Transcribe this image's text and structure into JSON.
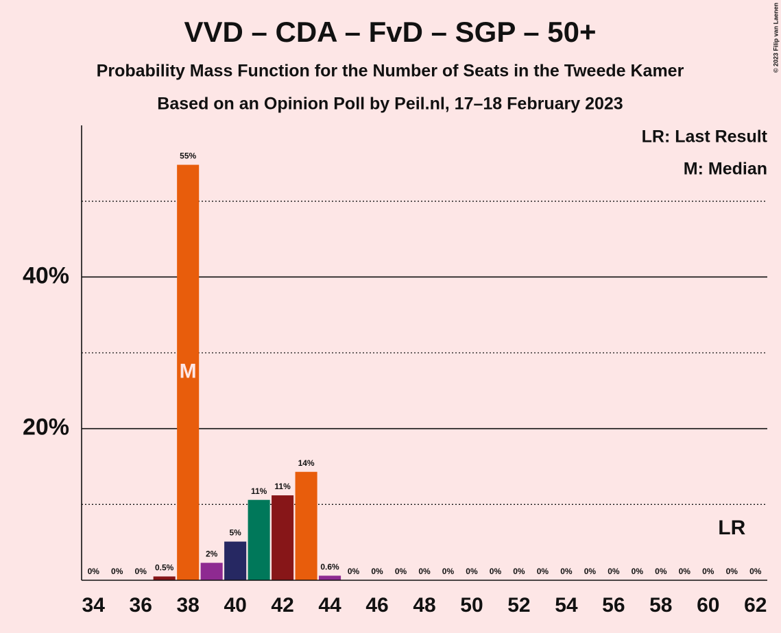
{
  "chart_data": {
    "type": "bar",
    "title": "VVD – CDA – FvD – SGP – 50+",
    "subtitle": "Probability Mass Function for the Number of Seats in the Tweede Kamer",
    "subtitle2": "Based on an Opinion Poll by Peil.nl, 17–18 February 2023",
    "copyright": "© 2023 Filip van Laenen",
    "legend": [
      "LR: Last Result",
      "M: Median"
    ],
    "legend_position": "upper right",
    "x": [
      34,
      35,
      36,
      37,
      38,
      39,
      40,
      41,
      42,
      43,
      44,
      45,
      46,
      47,
      48,
      49,
      50,
      51,
      52,
      53,
      54,
      55,
      56,
      57,
      58,
      59,
      60,
      61,
      62
    ],
    "values": [
      0,
      0,
      0,
      0.5,
      54.8,
      2.3,
      5.1,
      10.6,
      11.2,
      14.3,
      0.6,
      0,
      0,
      0,
      0,
      0,
      0,
      0,
      0,
      0,
      0,
      0,
      0,
      0,
      0,
      0,
      0,
      0,
      0
    ],
    "value_labels": [
      "0%",
      "0%",
      "0%",
      "0.5%",
      "55%",
      "2%",
      "5%",
      "11%",
      "11%",
      "14%",
      "0.6%",
      "0%",
      "0%",
      "0%",
      "0%",
      "0%",
      "0%",
      "0%",
      "0%",
      "0%",
      "0%",
      "0%",
      "0%",
      "0%",
      "0%",
      "0%",
      "0%",
      "0%",
      "0%"
    ],
    "colors": [
      "#871618",
      "#871618",
      "#871618",
      "#871618",
      "#e85d0c",
      "#8e2a91",
      "#262862",
      "#00785a",
      "#871618",
      "#e85d0c",
      "#8e2a91",
      "#871618",
      "#871618",
      "#871618",
      "#871618",
      "#871618",
      "#871618",
      "#871618",
      "#871618",
      "#871618",
      "#871618",
      "#871618",
      "#871618",
      "#871618",
      "#871618",
      "#871618",
      "#871618",
      "#871618",
      "#871618"
    ],
    "xlim": [
      33.5,
      62.5
    ],
    "xticks": [
      34,
      36,
      38,
      40,
      42,
      44,
      46,
      48,
      50,
      52,
      54,
      56,
      58,
      60,
      62
    ],
    "ylim": [
      0,
      60
    ],
    "yticks": [
      {
        "value": 20,
        "label": "20%"
      },
      {
        "value": 40,
        "label": "40%"
      }
    ],
    "minor_yticks": [
      10,
      30,
      50
    ],
    "grid": true,
    "median": 38,
    "median_label": "M",
    "last_result": 61,
    "last_result_label": "LR"
  }
}
